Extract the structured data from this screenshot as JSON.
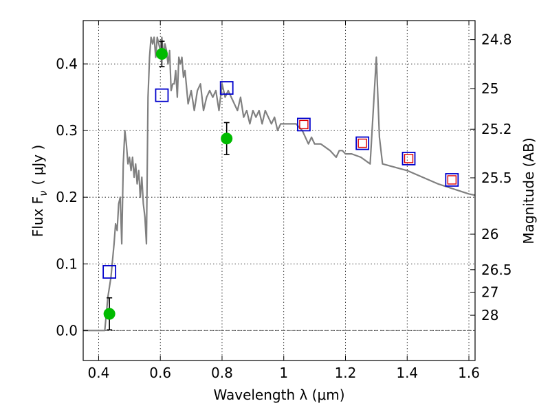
{
  "chart_data": {
    "type": "scatter",
    "xlabel": "Wavelength  λ (μm)",
    "ylabel": "Flux  F",
    "ylabel_subscript": "ν",
    "ylabel_unit": "( μJy )",
    "ylabel_right": "Magnitude (AB)",
    "xlim": [
      0.35,
      1.62
    ],
    "ylim": [
      -0.045,
      0.465
    ],
    "x_ticks": [
      0.4,
      0.6,
      0.8,
      1.0,
      1.2,
      1.4,
      1.6
    ],
    "x_tick_labels": [
      "0.4",
      "0.6",
      "0.8",
      "1",
      "1.2",
      "1.4",
      "1.6"
    ],
    "y_ticks": [
      0.0,
      0.1,
      0.2,
      0.3,
      0.4
    ],
    "y_tick_labels": [
      "0.0",
      "0.1",
      "0.2",
      "0.3",
      "0.4"
    ],
    "right_ticks": [
      {
        "mag": 24.8,
        "label": "24.8"
      },
      {
        "mag": 25.0,
        "label": "25"
      },
      {
        "mag": 25.2,
        "label": "25.2"
      },
      {
        "mag": 25.5,
        "label": "25.5"
      },
      {
        "mag": 26.0,
        "label": "26"
      },
      {
        "mag": 26.5,
        "label": "26.5"
      },
      {
        "mag": 27.0,
        "label": "27"
      },
      {
        "mag": 28.0,
        "label": "28"
      }
    ],
    "grid": true,
    "zero_line": true,
    "series": [
      {
        "kind": "model_sed",
        "color": "#808080",
        "x": [
          0.35,
          0.42,
          0.43,
          0.44,
          0.45,
          0.455,
          0.46,
          0.465,
          0.47,
          0.475,
          0.48,
          0.485,
          0.49,
          0.495,
          0.5,
          0.505,
          0.51,
          0.515,
          0.52,
          0.525,
          0.53,
          0.535,
          0.54,
          0.545,
          0.55,
          0.555,
          0.56,
          0.565,
          0.57,
          0.575,
          0.58,
          0.585,
          0.59,
          0.595,
          0.6,
          0.605,
          0.61,
          0.615,
          0.62,
          0.625,
          0.63,
          0.635,
          0.64,
          0.645,
          0.65,
          0.655,
          0.66,
          0.665,
          0.67,
          0.675,
          0.68,
          0.69,
          0.7,
          0.71,
          0.72,
          0.73,
          0.74,
          0.75,
          0.76,
          0.77,
          0.78,
          0.79,
          0.8,
          0.81,
          0.82,
          0.83,
          0.84,
          0.85,
          0.86,
          0.87,
          0.88,
          0.89,
          0.9,
          0.91,
          0.92,
          0.93,
          0.94,
          0.95,
          0.96,
          0.97,
          0.98,
          0.99,
          1.0,
          1.02,
          1.04,
          1.06,
          1.08,
          1.09,
          1.1,
          1.12,
          1.15,
          1.17,
          1.18,
          1.19,
          1.2,
          1.22,
          1.25,
          1.28,
          1.3,
          1.31,
          1.32,
          1.4,
          1.5,
          1.6,
          1.62
        ],
        "y": [
          0.0,
          0.0,
          0.05,
          0.08,
          0.13,
          0.16,
          0.15,
          0.19,
          0.2,
          0.13,
          0.25,
          0.3,
          0.28,
          0.25,
          0.26,
          0.24,
          0.26,
          0.23,
          0.25,
          0.22,
          0.24,
          0.2,
          0.23,
          0.19,
          0.17,
          0.13,
          0.35,
          0.41,
          0.44,
          0.43,
          0.44,
          0.41,
          0.44,
          0.43,
          0.42,
          0.44,
          0.41,
          0.43,
          0.42,
          0.4,
          0.42,
          0.36,
          0.37,
          0.37,
          0.39,
          0.35,
          0.41,
          0.4,
          0.41,
          0.38,
          0.39,
          0.34,
          0.36,
          0.33,
          0.36,
          0.37,
          0.33,
          0.35,
          0.36,
          0.35,
          0.36,
          0.33,
          0.37,
          0.35,
          0.36,
          0.35,
          0.34,
          0.33,
          0.35,
          0.32,
          0.33,
          0.31,
          0.33,
          0.32,
          0.33,
          0.31,
          0.33,
          0.32,
          0.31,
          0.32,
          0.3,
          0.31,
          0.31,
          0.31,
          0.31,
          0.3,
          0.28,
          0.29,
          0.28,
          0.28,
          0.27,
          0.26,
          0.27,
          0.27,
          0.265,
          0.265,
          0.26,
          0.25,
          0.41,
          0.29,
          0.25,
          0.24,
          0.22,
          0.205,
          0.203
        ]
      },
      {
        "kind": "measured",
        "marker": "filled-circle",
        "color": "#00bb00",
        "x": [
          0.435,
          0.605,
          0.815
        ],
        "y": [
          0.025,
          0.415,
          0.288
        ],
        "yerr": [
          0.024,
          0.019,
          0.024
        ]
      },
      {
        "kind": "model_blue",
        "marker": "open-square",
        "color": "#0000cc",
        "x": [
          0.435,
          0.605,
          0.815,
          1.065,
          1.255,
          1.405,
          1.545
        ],
        "y": [
          0.088,
          0.353,
          0.364,
          0.309,
          0.281,
          0.258,
          0.226
        ]
      },
      {
        "kind": "model_red",
        "marker": "open-square-small",
        "color": "#dd0000",
        "x": [
          1.065,
          1.255,
          1.405,
          1.545
        ],
        "y": [
          0.309,
          0.281,
          0.258,
          0.226
        ]
      }
    ]
  }
}
